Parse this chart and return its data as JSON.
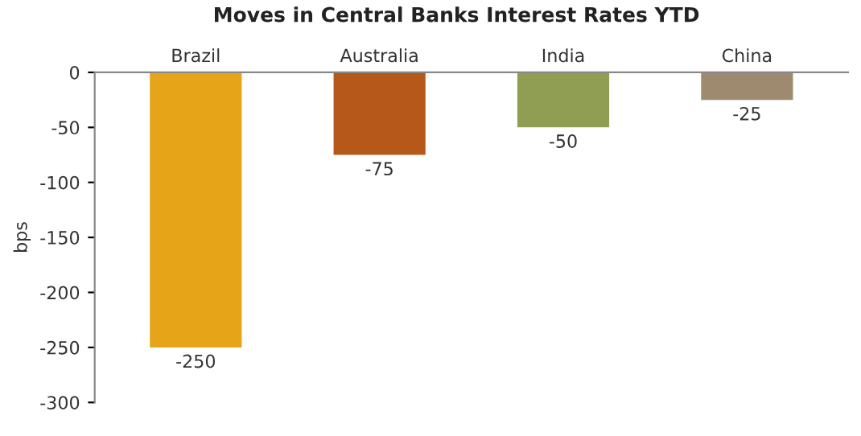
{
  "chart_data": {
    "type": "bar",
    "title": "Moves in Central Banks Interest Rates YTD",
    "ylabel": "bps",
    "categories": [
      "Brazil",
      "Australia",
      "India",
      "China"
    ],
    "values": [
      -250,
      -75,
      -50,
      -25
    ],
    "colors": [
      "#e6a418",
      "#b5581a",
      "#8f9e52",
      "#9e8b6f"
    ],
    "ylim": [
      -300,
      0
    ],
    "yticks": [
      0,
      -50,
      -100,
      -150,
      -200,
      -250,
      -300
    ],
    "data_labels": true,
    "grid": false,
    "legend": false
  }
}
